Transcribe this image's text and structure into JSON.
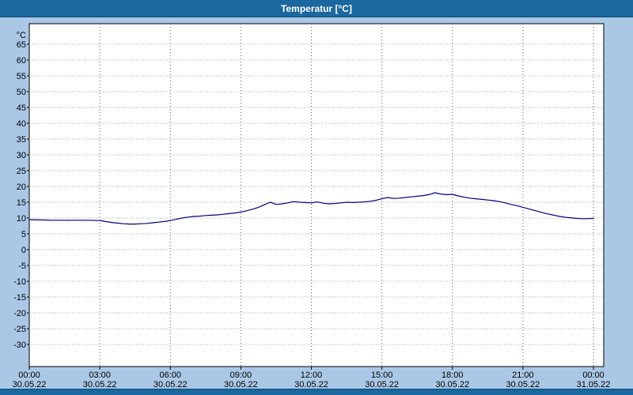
{
  "title_bar": {
    "title": "Temperatur [°C]"
  },
  "colors": {
    "title_bar_bg": "#1b67a0",
    "page_bg": "#aac8e6",
    "plot_bg": "#ffffff",
    "plot_border": "#000000",
    "grid_horizontal": "#a8a8a8",
    "grid_vertical": "#5a5a5a",
    "line": "#00007f"
  },
  "chart_data": {
    "type": "line",
    "title": "Temperatur [°C]",
    "unit_label": "°C",
    "ylabel": "",
    "xlabel": "",
    "ylim": [
      -30,
      65
    ],
    "y_tick_step": 5,
    "y_ticks": [
      65,
      60,
      55,
      50,
      45,
      40,
      35,
      30,
      25,
      20,
      15,
      10,
      5,
      0,
      -5,
      -10,
      -15,
      -20,
      -25,
      -30
    ],
    "x_range_hours": [
      0,
      24
    ],
    "x_ticks": [
      {
        "hour": 0,
        "time": "00:00",
        "date": "30.05.22"
      },
      {
        "hour": 3,
        "time": "03:00",
        "date": "30.05.22"
      },
      {
        "hour": 6,
        "time": "06:00",
        "date": "30.05.22"
      },
      {
        "hour": 9,
        "time": "09:00",
        "date": "30.05.22"
      },
      {
        "hour": 12,
        "time": "12:00",
        "date": "30.05.22"
      },
      {
        "hour": 15,
        "time": "15:00",
        "date": "30.05.22"
      },
      {
        "hour": 18,
        "time": "18:00",
        "date": "30.05.22"
      },
      {
        "hour": 21,
        "time": "21:00",
        "date": "30.05.22"
      },
      {
        "hour": 24,
        "time": "00:00",
        "date": "31.05.22"
      }
    ],
    "grid": true,
    "legend": "none",
    "series": [
      {
        "name": "Temperatur",
        "points": [
          [
            0,
            9.5
          ],
          [
            0.5,
            9.4
          ],
          [
            1,
            9.3
          ],
          [
            1.5,
            9.3
          ],
          [
            2,
            9.3
          ],
          [
            2.5,
            9.3
          ],
          [
            3,
            9.2
          ],
          [
            3.25,
            8.9
          ],
          [
            3.5,
            8.6
          ],
          [
            3.75,
            8.4
          ],
          [
            4,
            8.2
          ],
          [
            4.25,
            8.1
          ],
          [
            4.5,
            8.1
          ],
          [
            4.75,
            8.2
          ],
          [
            5,
            8.3
          ],
          [
            5.25,
            8.5
          ],
          [
            5.5,
            8.7
          ],
          [
            5.75,
            8.9
          ],
          [
            6,
            9.2
          ],
          [
            6.25,
            9.6
          ],
          [
            6.5,
            10.0
          ],
          [
            6.75,
            10.3
          ],
          [
            7,
            10.5
          ],
          [
            7.25,
            10.6
          ],
          [
            7.5,
            10.8
          ],
          [
            7.75,
            10.9
          ],
          [
            8,
            11.0
          ],
          [
            8.25,
            11.2
          ],
          [
            8.5,
            11.4
          ],
          [
            8.75,
            11.6
          ],
          [
            9,
            11.9
          ],
          [
            9.25,
            12.3
          ],
          [
            9.5,
            12.8
          ],
          [
            9.75,
            13.4
          ],
          [
            10,
            14.2
          ],
          [
            10.25,
            15.0
          ],
          [
            10.4,
            14.6
          ],
          [
            10.5,
            14.3
          ],
          [
            10.75,
            14.5
          ],
          [
            11,
            14.8
          ],
          [
            11.25,
            15.2
          ],
          [
            11.5,
            15.0
          ],
          [
            11.75,
            14.9
          ],
          [
            12,
            14.8
          ],
          [
            12.25,
            15.1
          ],
          [
            12.5,
            14.7
          ],
          [
            12.75,
            14.5
          ],
          [
            13,
            14.6
          ],
          [
            13.25,
            14.8
          ],
          [
            13.5,
            15.0
          ],
          [
            13.75,
            14.9
          ],
          [
            14,
            15.0
          ],
          [
            14.25,
            15.1
          ],
          [
            14.5,
            15.3
          ],
          [
            14.75,
            15.6
          ],
          [
            15,
            16.1
          ],
          [
            15.25,
            16.5
          ],
          [
            15.5,
            16.2
          ],
          [
            15.75,
            16.3
          ],
          [
            16,
            16.5
          ],
          [
            16.25,
            16.7
          ],
          [
            16.5,
            16.9
          ],
          [
            16.75,
            17.1
          ],
          [
            17,
            17.4
          ],
          [
            17.25,
            18.0
          ],
          [
            17.5,
            17.6
          ],
          [
            17.75,
            17.4
          ],
          [
            18,
            17.5
          ],
          [
            18.25,
            17.0
          ],
          [
            18.5,
            16.6
          ],
          [
            18.75,
            16.3
          ],
          [
            19,
            16.1
          ],
          [
            19.25,
            15.9
          ],
          [
            19.5,
            15.7
          ],
          [
            19.75,
            15.5
          ],
          [
            20,
            15.2
          ],
          [
            20.25,
            14.8
          ],
          [
            20.5,
            14.3
          ],
          [
            20.75,
            13.9
          ],
          [
            21,
            13.4
          ],
          [
            21.25,
            12.9
          ],
          [
            21.5,
            12.4
          ],
          [
            21.75,
            11.9
          ],
          [
            22,
            11.4
          ],
          [
            22.25,
            11.0
          ],
          [
            22.5,
            10.6
          ],
          [
            22.75,
            10.3
          ],
          [
            23,
            10.1
          ],
          [
            23.25,
            9.9
          ],
          [
            23.5,
            9.8
          ],
          [
            23.75,
            9.8
          ],
          [
            24,
            9.9
          ]
        ]
      }
    ]
  }
}
